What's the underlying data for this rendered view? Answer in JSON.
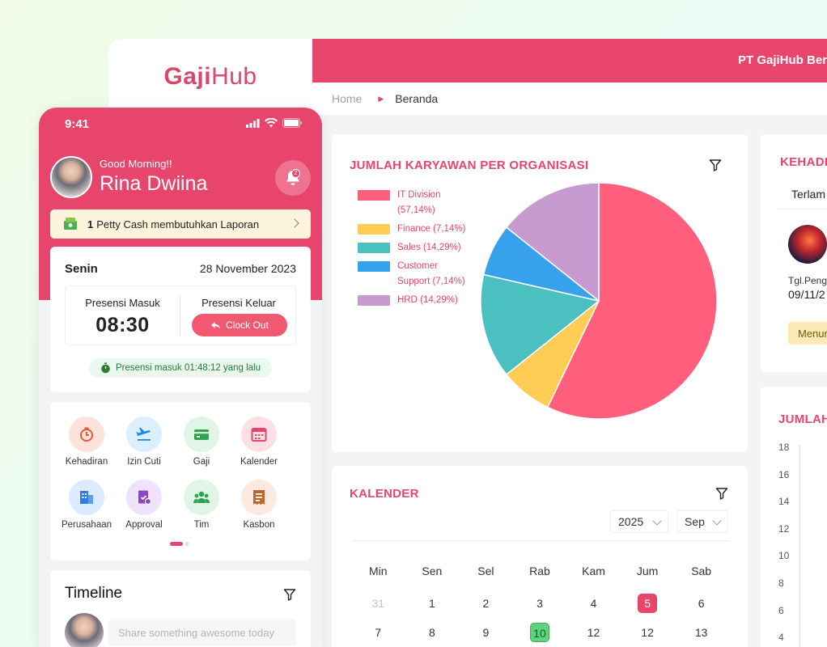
{
  "brand": {
    "logo_main": "Gaji",
    "logo_tail": "Hub"
  },
  "topbar": {
    "company": "PT GajiHub Ber"
  },
  "breadcrumb": {
    "home": "Home",
    "current": "Beranda"
  },
  "pie_card": {
    "title": "JUMLAH KARYAWAN PER ORGANISASI",
    "legend": [
      {
        "label": "IT Division (57,14%)",
        "color": "#ff5e7d"
      },
      {
        "label": "Finance (7,14%)",
        "color": "#ffcd56"
      },
      {
        "label": "Sales (14,29%)",
        "color": "#4bc0c0"
      },
      {
        "label": "Customer Support (7,14%)",
        "color": "#36a2eb"
      },
      {
        "label": "HRD (14,29%)",
        "color": "#c89bd0"
      }
    ]
  },
  "chart_data": {
    "type": "pie",
    "title": "JUMLAH KARYAWAN PER ORGANISASI",
    "categories": [
      "IT Division",
      "Finance",
      "Sales",
      "Customer Support",
      "HRD"
    ],
    "values": [
      57.14,
      7.14,
      14.29,
      7.14,
      14.29
    ],
    "colors": [
      "#ff5e7d",
      "#ffcd56",
      "#4bc0c0",
      "#36a2eb",
      "#c89bd0"
    ],
    "legend_position": "left"
  },
  "calendar": {
    "title": "KALENDER",
    "year": "2025",
    "month": "Sep",
    "weekdays": [
      "Min",
      "Sen",
      "Sel",
      "Rab",
      "Kam",
      "Jum",
      "Sab"
    ],
    "rows": [
      [
        "31",
        "1",
        "2",
        "3",
        "4",
        "5",
        "6"
      ],
      [
        "7",
        "8",
        "9",
        "10",
        "12",
        "12",
        "13"
      ]
    ],
    "highlight_red": "5",
    "highlight_green": "10"
  },
  "kehadiran_card": {
    "title": "KEHADI",
    "tab": "Terlam",
    "tgl_label": "Tgl.Penga",
    "tgl_value": "09/11/2",
    "status": "Menun"
  },
  "jumlah_card": {
    "title": "JUMLAH",
    "y_ticks": [
      "18",
      "16",
      "14",
      "12",
      "10",
      "8",
      "6",
      "4"
    ]
  },
  "phone": {
    "time": "9:41",
    "greeting": "Good Morning!!",
    "name": "Rina Dwiina",
    "notif_count": "2",
    "petty_count": "1",
    "petty_text": "Petty Cash membutuhkan Laporan",
    "day": "Senin",
    "date": "28 November 2023",
    "in_label": "Presensi Masuk",
    "in_time": "08:30",
    "out_label": "Presensi Keluar",
    "clock_out": "Clock Out",
    "since": "Presensi masuk 01:48:12 yang lalu",
    "menu": [
      {
        "label": "Kehadiran",
        "icon": "clock-icon",
        "bg": "#fde3dc",
        "fg": "#e8573c"
      },
      {
        "label": "Izin Cuti",
        "icon": "airplane-icon",
        "bg": "#dcefff",
        "fg": "#1e88e5"
      },
      {
        "label": "Gaji",
        "icon": "wallet-icon",
        "bg": "#e0f5e6",
        "fg": "#2ea44f"
      },
      {
        "label": "Kalender",
        "icon": "calendar-icon",
        "bg": "#fde0e6",
        "fg": "#e8456c"
      },
      {
        "label": "Perusahaan",
        "icon": "building-icon",
        "bg": "#dcebff",
        "fg": "#2f7de1"
      },
      {
        "label": "Approval",
        "icon": "approval-icon",
        "bg": "#efe3fb",
        "fg": "#8e44c9"
      },
      {
        "label": "Tim",
        "icon": "team-icon",
        "bg": "#e0f5e6",
        "fg": "#2ea44f"
      },
      {
        "label": "Kasbon",
        "icon": "receipt-icon",
        "bg": "#fdeadf",
        "fg": "#c0652b"
      }
    ],
    "timeline_title": "Timeline",
    "timeline_placeholder": "Share something awesome today"
  }
}
